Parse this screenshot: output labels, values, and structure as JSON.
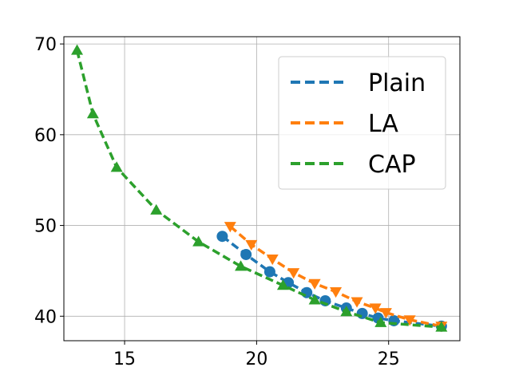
{
  "chart_data": {
    "type": "line",
    "title": "",
    "xlabel": "",
    "ylabel": "",
    "xlim": [
      12.7,
      27.7
    ],
    "ylim": [
      37.3,
      70.8
    ],
    "xticks": [
      15,
      20,
      25
    ],
    "yticks": [
      40,
      50,
      60,
      70
    ],
    "grid": true,
    "legend_position": "upper right",
    "series": [
      {
        "name": "Plain",
        "color": "#1f77b4",
        "marker": "circle",
        "linestyle": "dashed",
        "points": [
          [
            18.7,
            48.8
          ],
          [
            19.6,
            46.8
          ],
          [
            20.5,
            44.9
          ],
          [
            21.2,
            43.7
          ],
          [
            21.9,
            42.6
          ],
          [
            22.6,
            41.7
          ],
          [
            23.4,
            40.9
          ],
          [
            24.0,
            40.3
          ],
          [
            24.6,
            39.8
          ],
          [
            25.2,
            39.5
          ],
          [
            27.0,
            38.9
          ]
        ]
      },
      {
        "name": "LA",
        "color": "#ff7f0e",
        "marker": "triangle-down",
        "linestyle": "dashed",
        "points": [
          [
            19.0,
            49.9
          ],
          [
            19.8,
            47.9
          ],
          [
            20.6,
            46.3
          ],
          [
            21.4,
            44.8
          ],
          [
            22.2,
            43.6
          ],
          [
            23.0,
            42.7
          ],
          [
            23.8,
            41.6
          ],
          [
            24.5,
            40.9
          ],
          [
            24.9,
            40.4
          ],
          [
            25.8,
            39.6
          ],
          [
            27.0,
            38.9
          ]
        ]
      },
      {
        "name": "CAP",
        "color": "#2ca02c",
        "marker": "triangle-up",
        "linestyle": "dashed",
        "points": [
          [
            13.2,
            69.3
          ],
          [
            13.8,
            62.3
          ],
          [
            14.7,
            56.4
          ],
          [
            16.2,
            51.7
          ],
          [
            17.8,
            48.2
          ],
          [
            19.4,
            45.5
          ],
          [
            21.0,
            43.4
          ],
          [
            22.2,
            41.8
          ],
          [
            23.4,
            40.5
          ],
          [
            24.7,
            39.3
          ],
          [
            27.0,
            38.8
          ]
        ]
      }
    ]
  }
}
